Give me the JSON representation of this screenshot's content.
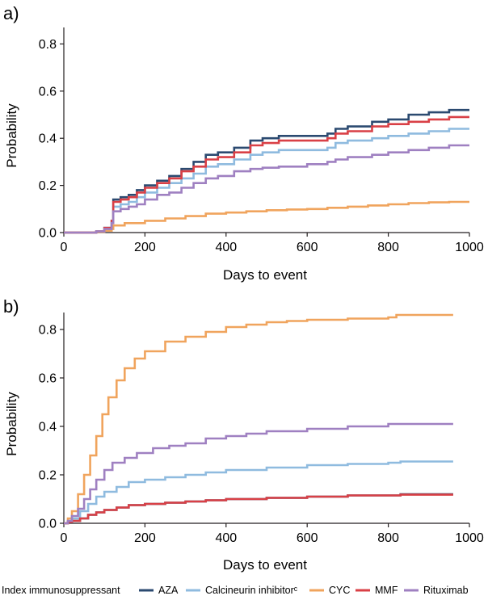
{
  "chart_data": [
    {
      "type": "line",
      "step": true,
      "panel_label": "a)",
      "xlabel": "Days to event",
      "ylabel": "Probability",
      "xlim": [
        0,
        1000
      ],
      "ylim": [
        0,
        0.87
      ],
      "xticks": [
        "0",
        "200",
        "400",
        "600",
        "800",
        "1000"
      ],
      "yticks": [
        "0.0",
        "0.2",
        "0.4",
        "0.6",
        "0.8"
      ],
      "series": [
        {
          "name": "AZA",
          "color": "#2b4a70",
          "x": [
            0,
            60,
            80,
            100,
            118,
            122,
            140,
            160,
            180,
            200,
            230,
            260,
            290,
            320,
            350,
            380,
            420,
            460,
            490,
            530,
            600,
            650,
            670,
            700,
            760,
            800,
            850,
            900,
            950,
            1000
          ],
          "y": [
            0,
            0,
            0.005,
            0.02,
            0.05,
            0.14,
            0.15,
            0.16,
            0.18,
            0.2,
            0.22,
            0.24,
            0.27,
            0.3,
            0.33,
            0.34,
            0.36,
            0.39,
            0.4,
            0.41,
            0.41,
            0.42,
            0.44,
            0.45,
            0.47,
            0.48,
            0.5,
            0.51,
            0.52,
            0.52
          ]
        },
        {
          "name": "Calcineurin inhibitorᶜ",
          "color": "#8fbbdf",
          "x": [
            0,
            60,
            80,
            100,
            118,
            122,
            140,
            160,
            180,
            200,
            230,
            260,
            290,
            320,
            350,
            380,
            420,
            460,
            490,
            530,
            600,
            650,
            670,
            700,
            760,
            800,
            850,
            900,
            950,
            1000
          ],
          "y": [
            0,
            0,
            0.005,
            0.02,
            0.045,
            0.11,
            0.12,
            0.13,
            0.15,
            0.17,
            0.19,
            0.21,
            0.23,
            0.25,
            0.28,
            0.29,
            0.31,
            0.33,
            0.34,
            0.35,
            0.35,
            0.36,
            0.38,
            0.39,
            0.4,
            0.41,
            0.42,
            0.43,
            0.44,
            0.44
          ]
        },
        {
          "name": "CYC",
          "color": "#f0a45d",
          "x": [
            0,
            60,
            80,
            100,
            118,
            122,
            150,
            200,
            250,
            300,
            350,
            400,
            450,
            500,
            550,
            600,
            650,
            700,
            750,
            800,
            850,
            900,
            950,
            1000
          ],
          "y": [
            0,
            0,
            0.003,
            0.008,
            0.015,
            0.03,
            0.04,
            0.05,
            0.06,
            0.07,
            0.08,
            0.085,
            0.09,
            0.095,
            0.098,
            0.1,
            0.105,
            0.11,
            0.115,
            0.12,
            0.125,
            0.128,
            0.13,
            0.13
          ]
        },
        {
          "name": "MMF",
          "color": "#d94046",
          "x": [
            0,
            60,
            80,
            100,
            118,
            122,
            140,
            160,
            180,
            200,
            230,
            260,
            290,
            320,
            350,
            380,
            420,
            460,
            490,
            530,
            600,
            650,
            670,
            700,
            760,
            800,
            850,
            900,
            950,
            1000
          ],
          "y": [
            0,
            0,
            0.005,
            0.02,
            0.05,
            0.13,
            0.14,
            0.15,
            0.17,
            0.19,
            0.21,
            0.23,
            0.26,
            0.28,
            0.31,
            0.32,
            0.34,
            0.37,
            0.38,
            0.39,
            0.39,
            0.4,
            0.42,
            0.43,
            0.45,
            0.46,
            0.47,
            0.48,
            0.49,
            0.49
          ]
        },
        {
          "name": "Rituximab",
          "color": "#9f80c1",
          "x": [
            0,
            60,
            80,
            100,
            118,
            122,
            140,
            160,
            180,
            200,
            230,
            260,
            290,
            320,
            350,
            380,
            420,
            460,
            490,
            530,
            600,
            650,
            670,
            700,
            760,
            800,
            850,
            900,
            950,
            1000
          ],
          "y": [
            0,
            0,
            0.005,
            0.015,
            0.04,
            0.09,
            0.1,
            0.11,
            0.12,
            0.14,
            0.16,
            0.17,
            0.19,
            0.21,
            0.23,
            0.24,
            0.26,
            0.27,
            0.275,
            0.28,
            0.29,
            0.3,
            0.31,
            0.32,
            0.33,
            0.34,
            0.35,
            0.36,
            0.37,
            0.37
          ]
        }
      ]
    },
    {
      "type": "line",
      "step": true,
      "panel_label": "b)",
      "xlabel": "Days to event",
      "ylabel": "Probability",
      "xlim": [
        0,
        1000
      ],
      "ylim": [
        0,
        0.87
      ],
      "xticks": [
        "0",
        "200",
        "400",
        "600",
        "800",
        "1000"
      ],
      "yticks": [
        "0.0",
        "0.2",
        "0.4",
        "0.6",
        "0.8"
      ],
      "series": [
        {
          "name": "AZA",
          "color": "#2b4a70",
          "x": [
            0,
            10,
            20,
            40,
            60,
            80,
            100,
            130,
            160,
            200,
            250,
            300,
            350,
            400,
            500,
            600,
            700,
            800,
            830,
            960
          ],
          "y": [
            0,
            0.005,
            0.01,
            0.02,
            0.035,
            0.045,
            0.055,
            0.065,
            0.075,
            0.08,
            0.085,
            0.09,
            0.095,
            0.1,
            0.105,
            0.11,
            0.115,
            0.115,
            0.12,
            0.12
          ]
        },
        {
          "name": "Calcineurin inhibitorᶜ",
          "color": "#8fbbdf",
          "x": [
            0,
            10,
            20,
            40,
            60,
            80,
            100,
            130,
            160,
            200,
            250,
            300,
            350,
            400,
            500,
            600,
            700,
            800,
            830,
            960
          ],
          "y": [
            0,
            0.01,
            0.02,
            0.05,
            0.08,
            0.11,
            0.13,
            0.15,
            0.17,
            0.18,
            0.19,
            0.2,
            0.21,
            0.22,
            0.23,
            0.24,
            0.245,
            0.25,
            0.255,
            0.255
          ]
        },
        {
          "name": "CYC",
          "color": "#f0a45d",
          "x": [
            0,
            10,
            20,
            35,
            50,
            65,
            80,
            95,
            110,
            130,
            150,
            175,
            200,
            250,
            300,
            350,
            400,
            450,
            500,
            550,
            600,
            700,
            800,
            820,
            960
          ],
          "y": [
            0,
            0.02,
            0.05,
            0.12,
            0.2,
            0.28,
            0.36,
            0.45,
            0.52,
            0.59,
            0.64,
            0.68,
            0.71,
            0.75,
            0.77,
            0.79,
            0.81,
            0.82,
            0.83,
            0.835,
            0.84,
            0.845,
            0.85,
            0.86,
            0.86
          ]
        },
        {
          "name": "MMF",
          "color": "#d94046",
          "x": [
            0,
            10,
            20,
            40,
            60,
            80,
            100,
            130,
            160,
            200,
            250,
            300,
            350,
            400,
            500,
            600,
            700,
            800,
            830,
            960
          ],
          "y": [
            0,
            0.005,
            0.01,
            0.02,
            0.035,
            0.045,
            0.055,
            0.065,
            0.075,
            0.08,
            0.085,
            0.09,
            0.095,
            0.1,
            0.105,
            0.11,
            0.115,
            0.115,
            0.118,
            0.118
          ]
        },
        {
          "name": "Rituximab",
          "color": "#9f80c1",
          "x": [
            0,
            10,
            20,
            35,
            50,
            65,
            80,
            100,
            120,
            150,
            180,
            220,
            260,
            300,
            350,
            400,
            450,
            500,
            600,
            700,
            800,
            960
          ],
          "y": [
            0,
            0.01,
            0.03,
            0.06,
            0.1,
            0.14,
            0.18,
            0.22,
            0.25,
            0.27,
            0.29,
            0.31,
            0.32,
            0.33,
            0.35,
            0.36,
            0.37,
            0.38,
            0.39,
            0.4,
            0.41,
            0.41
          ]
        }
      ]
    }
  ],
  "legend": {
    "title": "Index immunosuppressant",
    "items": [
      {
        "label": "AZA",
        "color": "#2b4a70"
      },
      {
        "label": "Calcineurin inhibitorᶜ",
        "color": "#8fbbdf"
      },
      {
        "label": "CYC",
        "color": "#f0a45d"
      },
      {
        "label": "MMF",
        "color": "#d94046"
      },
      {
        "label": "Rituximab",
        "color": "#9f80c1"
      }
    ]
  }
}
